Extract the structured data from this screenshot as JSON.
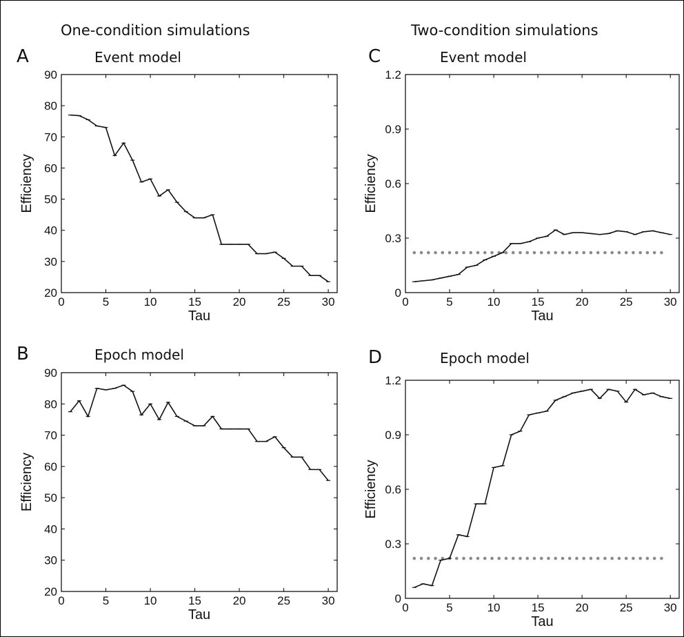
{
  "headings": {
    "left": "One-condition simulations",
    "right": "Two-condition simulations"
  },
  "colors": {
    "line": "#111111",
    "reference": "#8a8a8a"
  },
  "chart_data": [
    {
      "id": "A",
      "letter": "A",
      "type": "line",
      "title": "Event model",
      "xlabel": "Tau",
      "ylabel": "Efficiency",
      "xlim": [
        0,
        31
      ],
      "ylim": [
        20,
        90
      ],
      "xticks": [
        0,
        5,
        10,
        15,
        20,
        25,
        30
      ],
      "yticks": [
        20,
        30,
        40,
        50,
        60,
        70,
        80,
        90
      ],
      "series": [
        {
          "x": [
            1,
            2,
            3,
            4,
            5,
            6,
            7,
            8,
            9,
            10,
            11,
            12,
            13,
            14,
            15,
            16,
            17,
            18,
            19,
            20,
            21,
            22,
            23,
            24,
            25,
            26,
            27,
            28,
            29,
            30
          ],
          "values": [
            77,
            76.8,
            75.5,
            73.5,
            73,
            64,
            68,
            62.5,
            55.5,
            56.5,
            51,
            53,
            49,
            46,
            44,
            44,
            45,
            35.5,
            35.5,
            35.5,
            35.5,
            32.5,
            32.5,
            33,
            31,
            28.5,
            28.5,
            25.5,
            25.5,
            23.5
          ]
        }
      ]
    },
    {
      "id": "B",
      "letter": "B",
      "type": "line",
      "title": "Epoch model",
      "xlabel": "Tau",
      "ylabel": "Efficiency",
      "xlim": [
        0,
        31
      ],
      "ylim": [
        20,
        90
      ],
      "xticks": [
        0,
        5,
        10,
        15,
        20,
        25,
        30
      ],
      "yticks": [
        20,
        30,
        40,
        50,
        60,
        70,
        80,
        90
      ],
      "series": [
        {
          "x": [
            1,
            2,
            3,
            4,
            5,
            6,
            7,
            8,
            9,
            10,
            11,
            12,
            13,
            14,
            15,
            16,
            17,
            18,
            19,
            20,
            21,
            22,
            23,
            24,
            25,
            26,
            27,
            28,
            29,
            30
          ],
          "values": [
            77.5,
            81,
            76,
            85,
            84.5,
            85,
            86,
            84,
            76.5,
            80,
            75,
            80.5,
            76,
            74.5,
            73,
            73,
            76,
            72,
            72,
            72,
            72,
            68,
            68,
            69.5,
            66,
            63,
            63,
            59,
            59,
            55.5
          ]
        }
      ]
    },
    {
      "id": "C",
      "letter": "C",
      "type": "line",
      "title": "Event model",
      "xlabel": "Tau",
      "ylabel": "Efficiency",
      "xlim": [
        0,
        31
      ],
      "ylim": [
        0,
        1.2
      ],
      "xticks": [
        0,
        5,
        10,
        15,
        20,
        25,
        30
      ],
      "yticks": [
        0,
        0.3,
        0.6,
        0.9,
        1.2
      ],
      "ytick_labels": [
        "0",
        "0.3",
        "0.6",
        "0.9",
        "1.2"
      ],
      "reference_level": 0.22,
      "series": [
        {
          "x": [
            1,
            2,
            3,
            4,
            5,
            6,
            7,
            8,
            9,
            10,
            11,
            12,
            13,
            14,
            15,
            16,
            17,
            18,
            19,
            20,
            21,
            22,
            23,
            24,
            25,
            26,
            27,
            28,
            29,
            30
          ],
          "values": [
            0.06,
            0.065,
            0.07,
            0.08,
            0.09,
            0.1,
            0.14,
            0.15,
            0.18,
            0.2,
            0.22,
            0.27,
            0.27,
            0.28,
            0.3,
            0.31,
            0.345,
            0.32,
            0.33,
            0.33,
            0.325,
            0.32,
            0.325,
            0.34,
            0.335,
            0.32,
            0.335,
            0.34,
            0.33,
            0.32
          ]
        }
      ]
    },
    {
      "id": "D",
      "letter": "D",
      "type": "line",
      "title": "Epoch model",
      "xlabel": "Tau",
      "ylabel": "Efficiency",
      "xlim": [
        0,
        31
      ],
      "ylim": [
        0,
        1.2
      ],
      "xticks": [
        0,
        5,
        10,
        15,
        20,
        25,
        30
      ],
      "yticks": [
        0,
        0.3,
        0.6,
        0.9,
        1.2
      ],
      "ytick_labels": [
        "0",
        "0.3",
        "0.6",
        "0.9",
        "1.2"
      ],
      "reference_level": 0.22,
      "series": [
        {
          "x": [
            1,
            2,
            3,
            4,
            5,
            6,
            7,
            8,
            9,
            10,
            11,
            12,
            13,
            14,
            15,
            16,
            17,
            18,
            19,
            20,
            21,
            22,
            23,
            24,
            25,
            26,
            27,
            28,
            29,
            30
          ],
          "values": [
            0.06,
            0.08,
            0.07,
            0.21,
            0.22,
            0.35,
            0.34,
            0.52,
            0.52,
            0.72,
            0.73,
            0.9,
            0.92,
            1.01,
            1.02,
            1.03,
            1.09,
            1.11,
            1.13,
            1.14,
            1.15,
            1.1,
            1.15,
            1.14,
            1.08,
            1.15,
            1.12,
            1.13,
            1.11,
            1.1
          ]
        }
      ]
    }
  ]
}
